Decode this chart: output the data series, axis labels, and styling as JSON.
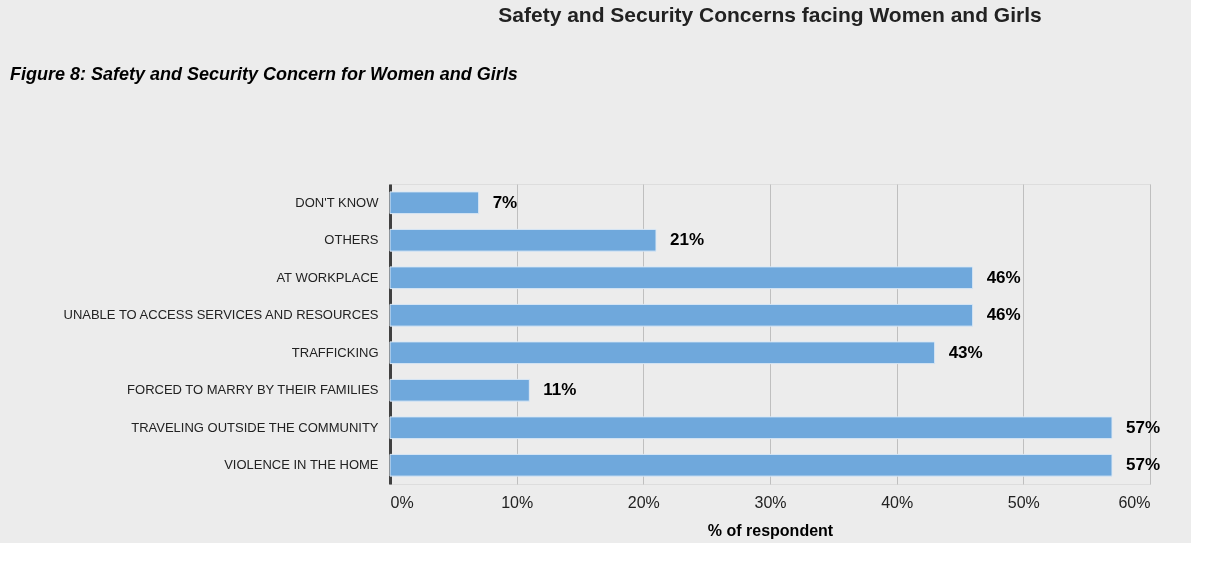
{
  "chart_data": {
    "type": "bar",
    "orientation": "horizontal",
    "title": "Safety and Security Concerns facing Women and Girls",
    "xlabel": "% of respondent",
    "annotations": [
      "Figure 8: Safety and Security Concern for Women and Girls"
    ],
    "categories": [
      "DON'T KNOW",
      "OTHERS",
      "AT WORKPLACE",
      "UNABLE TO ACCESS SERVICES AND RESOURCES",
      "TRAFFICKING",
      "FORCED TO MARRY BY THEIR FAMILIES",
      "TRAVELING OUTSIDE THE COMMUNITY",
      "VIOLENCE IN THE HOME"
    ],
    "values": [
      7,
      21,
      46,
      46,
      43,
      11,
      57,
      57
    ],
    "value_labels": [
      "7%",
      "21%",
      "46%",
      "46%",
      "43%",
      "11%",
      "57%",
      "57%"
    ],
    "color": "#6fa8dc",
    "xlim": [
      0,
      60
    ],
    "xticks": [
      {
        "value": 0,
        "label": "0%"
      },
      {
        "value": 10,
        "label": "10%"
      },
      {
        "value": 20,
        "label": "20%"
      },
      {
        "value": 30,
        "label": "30%"
      },
      {
        "value": 40,
        "label": "40%"
      },
      {
        "value": 50,
        "label": "50%"
      },
      {
        "value": 60,
        "label": "60%"
      }
    ],
    "grid": "x"
  }
}
